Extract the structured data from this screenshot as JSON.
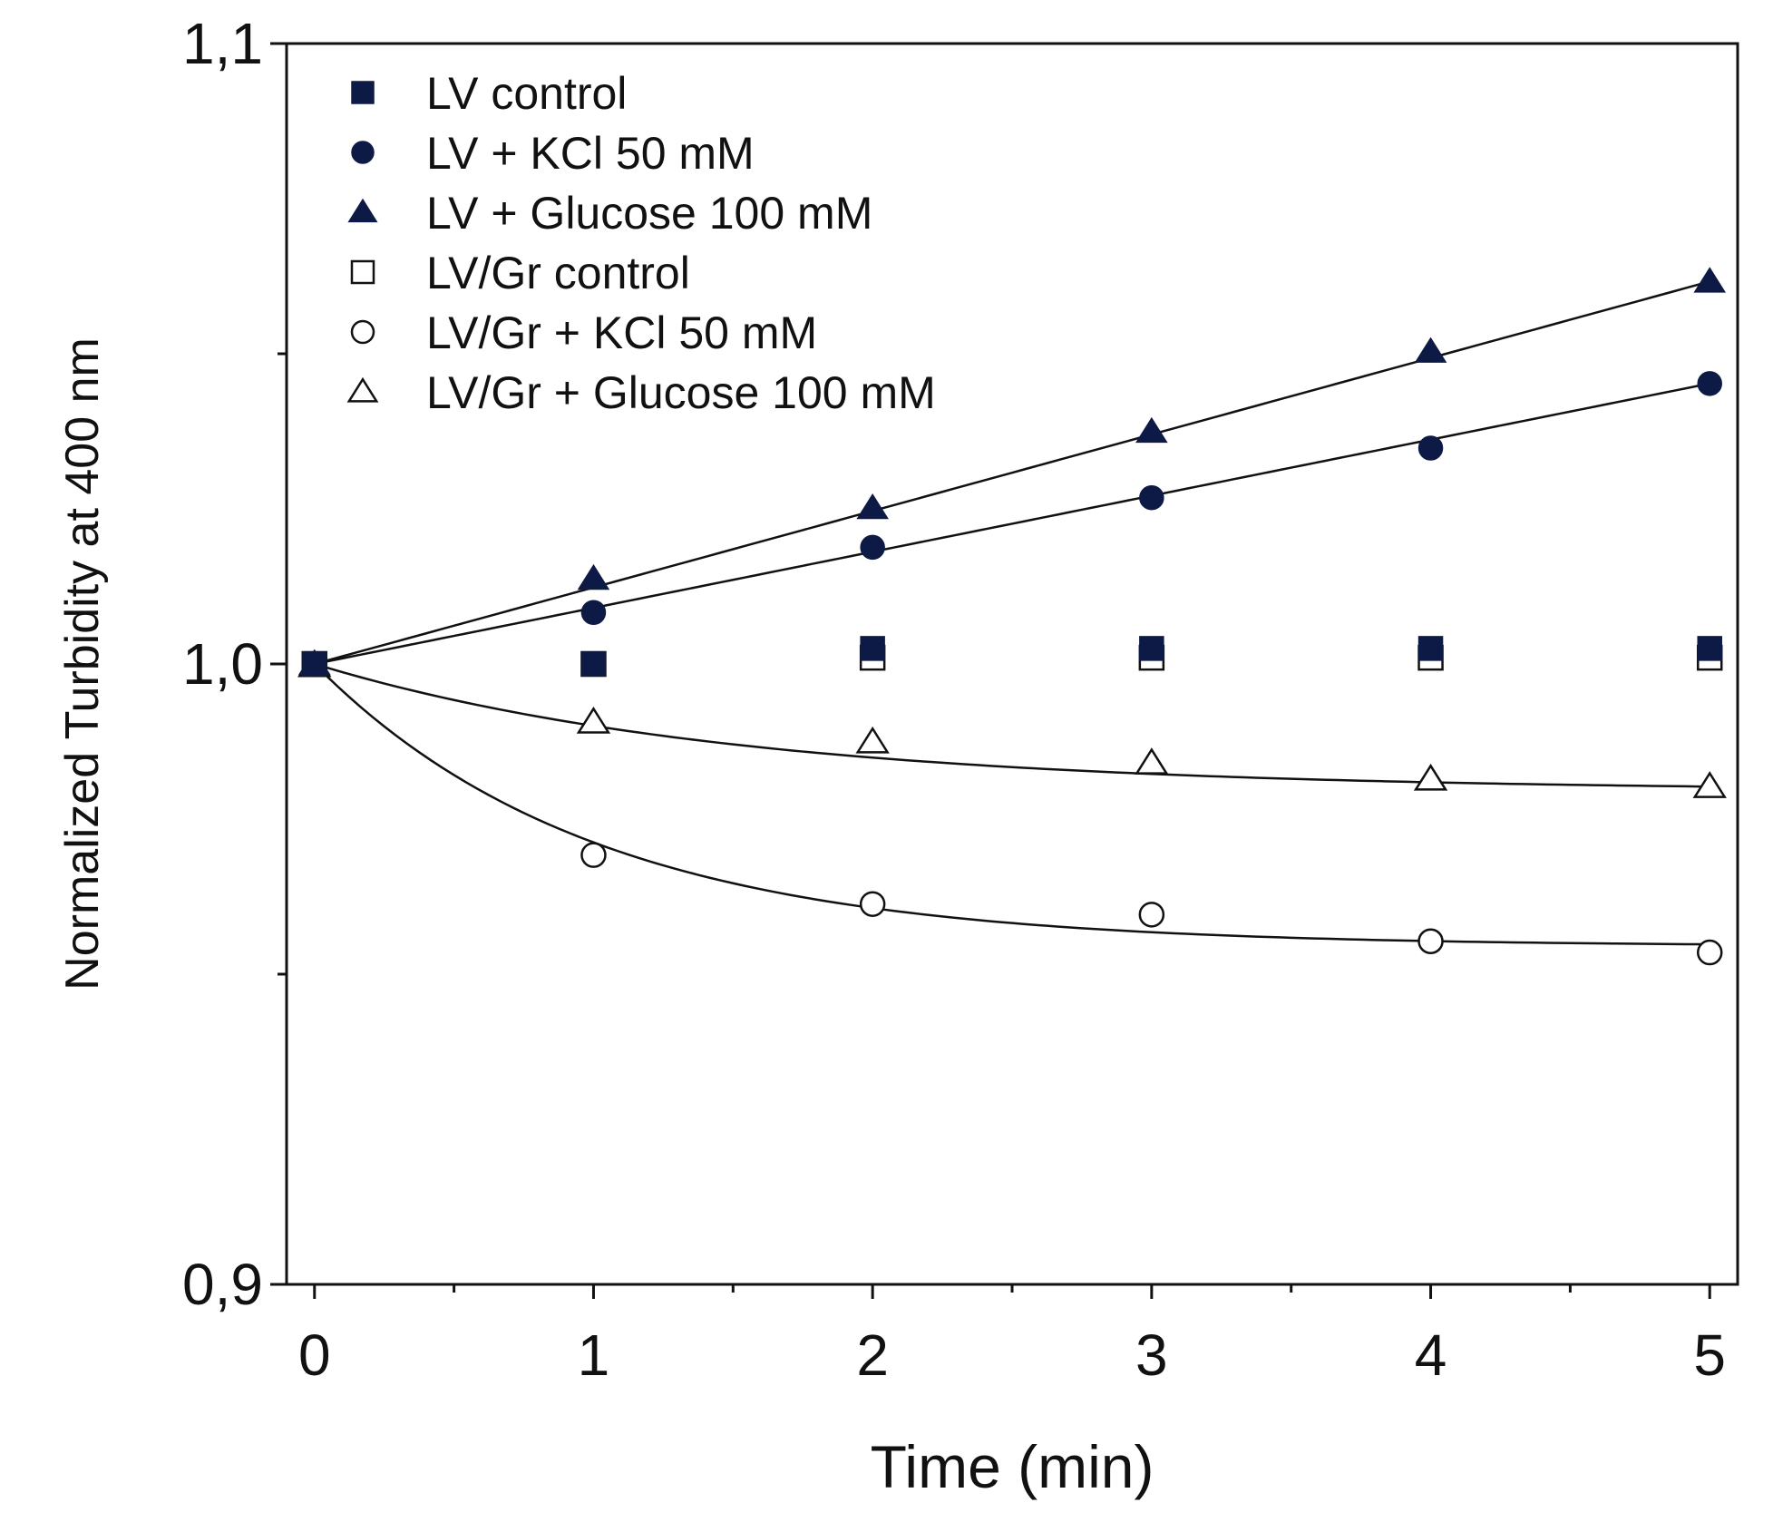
{
  "chart_data": {
    "type": "scatter",
    "title": "",
    "xlabel": "Time (min)",
    "ylabel": "Normalized Turbidity at 400 nm",
    "xlim": [
      -0.1,
      5.1
    ],
    "ylim": [
      0.9,
      1.1
    ],
    "x_ticks": [
      0,
      1,
      2,
      3,
      4,
      5
    ],
    "x_tick_labels": [
      "0",
      "1",
      "2",
      "3",
      "4",
      "5"
    ],
    "y_ticks": [
      0.9,
      1.0,
      1.1
    ],
    "y_tick_labels": [
      "0,9",
      "1,0",
      "1,1"
    ],
    "y_minor_ticks": [
      0.95,
      1.05
    ],
    "grid": false,
    "legend_position": "top-left",
    "series": [
      {
        "name": "LV control",
        "marker": "square",
        "filled": true,
        "fit_line": false,
        "x": [
          0,
          1,
          2,
          3,
          4,
          5
        ],
        "y": [
          1.0,
          1.0,
          1.0025,
          1.0025,
          1.0025,
          1.0025
        ]
      },
      {
        "name": "LV + KCl 50 mM",
        "marker": "circle",
        "filled": true,
        "fit_line": true,
        "x": [
          0,
          1,
          2,
          3,
          4,
          5
        ],
        "y": [
          1.0,
          1.0083,
          1.0188,
          1.0268,
          1.0348,
          1.0452
        ]
      },
      {
        "name": "LV + Glucose 100 mM",
        "marker": "triangle",
        "filled": true,
        "fit_line": true,
        "x": [
          0,
          1,
          2,
          3,
          4,
          5
        ],
        "y": [
          1.0,
          1.0137,
          1.0251,
          1.0374,
          1.0503,
          1.0616
        ]
      },
      {
        "name": "LV/Gr control",
        "marker": "square",
        "filled": false,
        "fit_line": false,
        "x": [
          0,
          1,
          2,
          3,
          4,
          5
        ],
        "y": [
          1.0,
          1.0,
          1.001,
          1.001,
          1.001,
          1.001
        ]
      },
      {
        "name": "LV/Gr + KCl 50 mM",
        "marker": "circle",
        "filled": false,
        "fit_line": true,
        "x": [
          0,
          1,
          2,
          3,
          4,
          5
        ],
        "y": [
          1.0,
          0.9692,
          0.9613,
          0.9596,
          0.9553,
          0.9535
        ]
      },
      {
        "name": "LV/Gr + Glucose 100 mM",
        "marker": "triangle",
        "filled": false,
        "fit_line": true,
        "x": [
          0,
          1,
          2,
          3,
          4,
          5
        ],
        "y": [
          0.9997,
          0.9906,
          0.9874,
          0.984,
          0.9814,
          0.9802
        ]
      }
    ],
    "fit_curves": [
      {
        "series": "LV + KCl 50 mM",
        "model": "linear",
        "x0": 0,
        "y0": 1.0,
        "slope": 0.00904
      },
      {
        "series": "LV + Glucose 100 mM",
        "model": "linear",
        "x0": 0,
        "y0": 1.0,
        "slope": 0.01233
      },
      {
        "series": "LV/Gr + KCl 50 mM",
        "model": "exponential",
        "asymptote": 0.9545,
        "amplitude": 0.0455,
        "tau": 1.0
      },
      {
        "series": "LV/Gr + Glucose 100 mM",
        "model": "exponential",
        "asymptote": 0.9795,
        "amplitude": 0.0205,
        "tau": 1.5
      }
    ]
  }
}
